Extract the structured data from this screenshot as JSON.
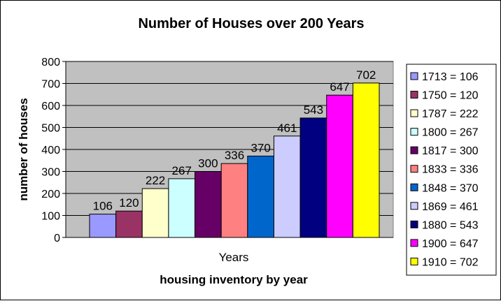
{
  "chart_data": {
    "type": "bar",
    "title": "Number of Houses over 200 Years",
    "xlabel": "housing inventory by year",
    "xcategory_label": "Years",
    "ylabel": "number of houses",
    "ylim": [
      0,
      800
    ],
    "yticks": [
      0,
      100,
      200,
      300,
      400,
      500,
      600,
      700,
      800
    ],
    "grid": true,
    "legend_position": "right",
    "plot_background": "#c0c0c0",
    "series": [
      {
        "name": "1713 = 106",
        "value": 106,
        "color": "#9999ff"
      },
      {
        "name": "1750 = 120",
        "value": 120,
        "color": "#993366"
      },
      {
        "name": "1787 = 222",
        "value": 222,
        "color": "#ffffcc"
      },
      {
        "name": "1800 = 267",
        "value": 267,
        "color": "#ccffff"
      },
      {
        "name": "1817 = 300",
        "value": 300,
        "color": "#660066"
      },
      {
        "name": "1833 = 336",
        "value": 336,
        "color": "#ff8080"
      },
      {
        "name": "1848 = 370",
        "value": 370,
        "color": "#0066cc"
      },
      {
        "name": "1869 = 461",
        "value": 461,
        "color": "#ccccff"
      },
      {
        "name": "1880 = 543",
        "value": 543,
        "color": "#000080"
      },
      {
        "name": "1900 = 647",
        "value": 647,
        "color": "#ff00ff"
      },
      {
        "name": "1910 = 702",
        "value": 702,
        "color": "#ffff00"
      }
    ]
  }
}
